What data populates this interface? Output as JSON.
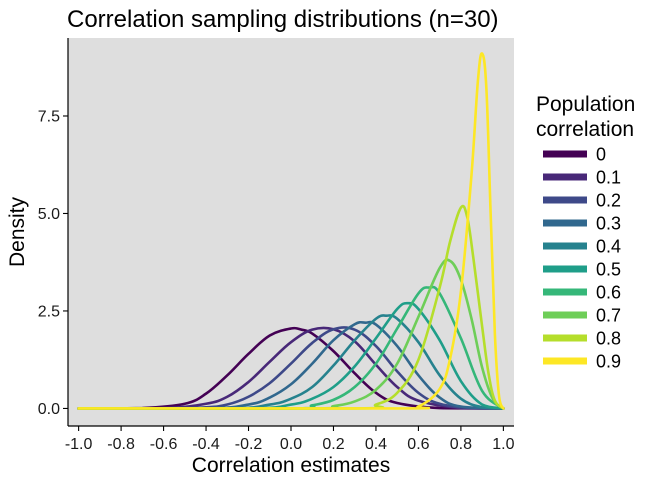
{
  "chart_data": {
    "type": "line",
    "title": "Correlation sampling distributions (n=30)",
    "xlabel": "Correlation estimates",
    "ylabel": "Density",
    "xlim": [
      -1.05,
      1.05
    ],
    "ylim": [
      -0.45,
      9.5
    ],
    "x_ticks": [
      -1.0,
      -0.8,
      -0.6,
      -0.4,
      -0.2,
      0.0,
      0.2,
      0.4,
      0.6,
      0.8,
      1.0
    ],
    "x_tick_labels": [
      "-1.0",
      "-0.8",
      "-0.6",
      "-0.4",
      "-0.2",
      "0.0",
      "0.2",
      "0.4",
      "0.6",
      "0.8",
      "1.0"
    ],
    "y_ticks": [
      0.0,
      2.5,
      5.0,
      7.5
    ],
    "y_tick_labels": [
      "0.0",
      "2.5",
      "5.0",
      "7.5"
    ],
    "grid": false,
    "panel_background": "#dedede",
    "legend": {
      "title_lines": [
        "Population",
        "correlation"
      ],
      "placement": "right"
    },
    "series": [
      {
        "name": "0",
        "color": "#440154",
        "x": [
          -1.0,
          -0.7,
          -0.5,
          -0.4,
          -0.3,
          -0.2,
          -0.1,
          0.0,
          0.05,
          0.1,
          0.2,
          0.3,
          0.4,
          0.5,
          0.7,
          1.0
        ],
        "y": [
          0.0,
          0.01,
          0.12,
          0.38,
          0.85,
          1.4,
          1.87,
          2.05,
          2.02,
          1.92,
          1.47,
          0.9,
          0.4,
          0.14,
          0.01,
          0.0
        ]
      },
      {
        "name": "0.1",
        "color": "#482878",
        "x": [
          -1.0,
          -0.6,
          -0.4,
          -0.3,
          -0.2,
          -0.1,
          0.0,
          0.1,
          0.2,
          0.3,
          0.4,
          0.5,
          0.6,
          0.8,
          1.0
        ],
        "y": [
          0.0,
          0.01,
          0.12,
          0.3,
          0.68,
          1.2,
          1.7,
          2.02,
          2.03,
          1.72,
          1.12,
          0.55,
          0.2,
          0.01,
          0.0
        ]
      },
      {
        "name": "0.2",
        "color": "#3e4989",
        "x": [
          -1.0,
          -0.6,
          -0.4,
          -0.3,
          -0.2,
          -0.1,
          0.0,
          0.1,
          0.2,
          0.3,
          0.4,
          0.5,
          0.6,
          0.7,
          0.85,
          1.0
        ],
        "y": [
          0.0,
          0.0,
          0.03,
          0.1,
          0.3,
          0.65,
          1.15,
          1.68,
          2.03,
          2.02,
          1.6,
          0.95,
          0.4,
          0.12,
          0.01,
          0.0
        ]
      },
      {
        "name": "0.3",
        "color": "#31688e",
        "x": [
          -1.0,
          -0.4,
          -0.2,
          -0.1,
          0.0,
          0.1,
          0.2,
          0.3,
          0.35,
          0.4,
          0.5,
          0.6,
          0.7,
          0.8,
          1.0
        ],
        "y": [
          0.0,
          0.0,
          0.1,
          0.28,
          0.62,
          1.15,
          1.75,
          2.16,
          2.2,
          2.15,
          1.6,
          0.85,
          0.28,
          0.05,
          0.0
        ]
      },
      {
        "name": "0.4",
        "color": "#26828e",
        "x": [
          -1.0,
          -0.3,
          -0.1,
          0.0,
          0.1,
          0.2,
          0.3,
          0.4,
          0.45,
          0.5,
          0.6,
          0.7,
          0.8,
          0.9,
          1.0
        ],
        "y": [
          0.0,
          0.0,
          0.1,
          0.25,
          0.55,
          1.1,
          1.75,
          2.3,
          2.38,
          2.3,
          1.7,
          0.85,
          0.25,
          0.03,
          0.0
        ]
      },
      {
        "name": "0.5",
        "color": "#1f9e89",
        "x": [
          -1.0,
          -0.2,
          0.0,
          0.1,
          0.2,
          0.3,
          0.4,
          0.5,
          0.55,
          0.6,
          0.7,
          0.8,
          0.9,
          1.0
        ],
        "y": [
          0.0,
          0.0,
          0.1,
          0.25,
          0.55,
          1.08,
          1.8,
          2.55,
          2.7,
          2.55,
          1.75,
          0.7,
          0.1,
          0.0
        ]
      },
      {
        "name": "0.6",
        "color": "#35b779",
        "x": [
          -1.0,
          0.0,
          0.1,
          0.2,
          0.3,
          0.4,
          0.5,
          0.6,
          0.65,
          0.7,
          0.8,
          0.9,
          1.0
        ],
        "y": [
          0.0,
          0.0,
          0.08,
          0.22,
          0.55,
          1.15,
          2.05,
          2.95,
          3.1,
          2.95,
          1.8,
          0.45,
          0.0
        ]
      },
      {
        "name": "0.7",
        "color": "#6ece58",
        "x": [
          -1.0,
          0.1,
          0.2,
          0.3,
          0.4,
          0.5,
          0.6,
          0.7,
          0.75,
          0.8,
          0.85,
          0.9,
          0.95,
          1.0
        ],
        "y": [
          0.0,
          0.0,
          0.06,
          0.18,
          0.48,
          1.15,
          2.35,
          3.6,
          3.78,
          3.3,
          2.3,
          1.05,
          0.25,
          0.0
        ]
      },
      {
        "name": "0.8",
        "color": "#b5de2b",
        "x": [
          -1.0,
          0.3,
          0.4,
          0.5,
          0.6,
          0.7,
          0.75,
          0.8,
          0.83,
          0.86,
          0.9,
          0.93,
          0.96,
          1.0
        ],
        "y": [
          0.0,
          0.0,
          0.1,
          0.4,
          1.25,
          3.1,
          4.3,
          5.15,
          4.9,
          3.8,
          2.1,
          0.9,
          0.2,
          0.0
        ]
      },
      {
        "name": "0.9",
        "color": "#fde725",
        "x": [
          -1.0,
          0.5,
          0.6,
          0.7,
          0.75,
          0.8,
          0.85,
          0.88,
          0.9,
          0.92,
          0.94,
          0.96,
          0.98,
          1.0
        ],
        "y": [
          0.0,
          0.0,
          0.05,
          0.5,
          1.3,
          3.0,
          6.0,
          8.4,
          9.1,
          8.2,
          5.0,
          1.9,
          0.3,
          0.0
        ]
      }
    ]
  }
}
